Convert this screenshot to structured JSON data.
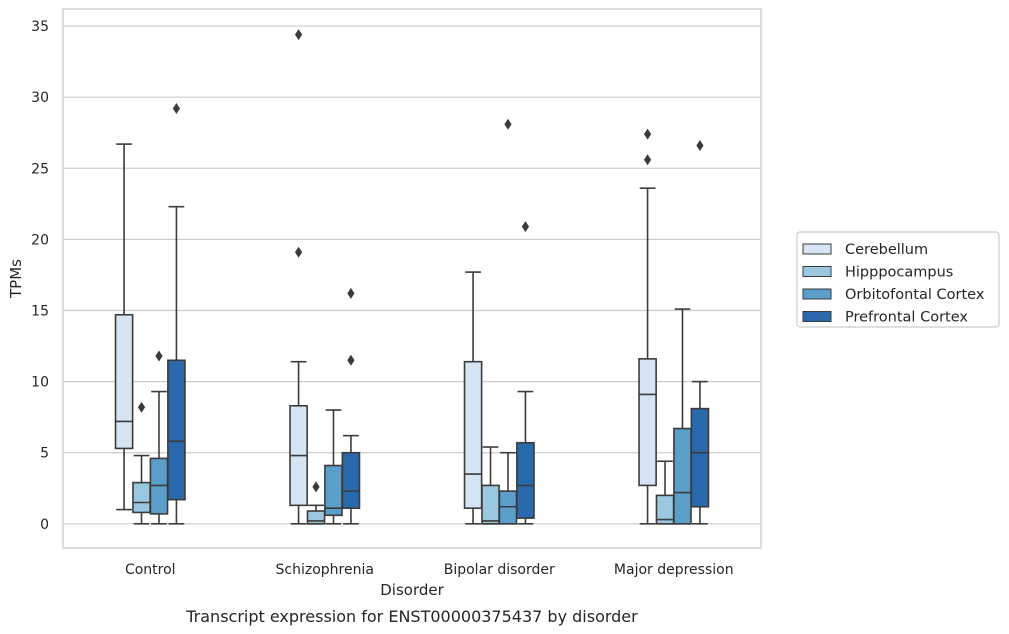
{
  "chart_data": {
    "type": "box",
    "title": "",
    "xlabel": "Disorder",
    "ylabel": "TPMs",
    "caption": "Transcript expression for ENST00000375437 by disorder",
    "ylim": [
      -1.7,
      36.2
    ],
    "yticks": [
      0,
      5,
      10,
      15,
      20,
      25,
      30,
      35
    ],
    "grid": true,
    "legend_position": "right",
    "categories": [
      "Control",
      "Schizophrenia",
      "Bipolar disorder",
      "Major depression"
    ],
    "series": [
      {
        "name": "Cerebellum",
        "color": "#d6e5f4",
        "boxes": [
          {
            "whisker_low": 1.0,
            "q1": 5.3,
            "median": 7.2,
            "q3": 14.7,
            "whisker_high": 26.7,
            "outliers": []
          },
          {
            "whisker_low": 0.0,
            "q1": 1.3,
            "median": 4.8,
            "q3": 8.3,
            "whisker_high": 11.4,
            "outliers": [
              19.1,
              34.4
            ]
          },
          {
            "whisker_low": 0.0,
            "q1": 1.1,
            "median": 3.5,
            "q3": 11.4,
            "whisker_high": 17.7,
            "outliers": []
          },
          {
            "whisker_low": 0.0,
            "q1": 2.7,
            "median": 9.1,
            "q3": 11.6,
            "whisker_high": 23.6,
            "outliers": [
              25.6,
              27.4
            ]
          }
        ]
      },
      {
        "name": "Hipppocampus",
        "color": "#9ac8e0",
        "boxes": [
          {
            "whisker_low": 0.0,
            "q1": 0.8,
            "median": 1.5,
            "q3": 2.9,
            "whisker_high": 4.8,
            "outliers": [
              8.2
            ]
          },
          {
            "whisker_low": 0.0,
            "q1": 0.0,
            "median": 0.2,
            "q3": 0.9,
            "whisker_high": 1.3,
            "outliers": [
              2.6
            ]
          },
          {
            "whisker_low": 0.0,
            "q1": 0.0,
            "median": 0.2,
            "q3": 2.7,
            "whisker_high": 5.4,
            "outliers": []
          },
          {
            "whisker_low": 0.0,
            "q1": 0.0,
            "median": 0.3,
            "q3": 2.0,
            "whisker_high": 4.4,
            "outliers": []
          }
        ]
      },
      {
        "name": "Orbitofontal Cortex",
        "color": "#5a9ec9",
        "boxes": [
          {
            "whisker_low": 0.0,
            "q1": 0.7,
            "median": 2.7,
            "q3": 4.6,
            "whisker_high": 9.3,
            "outliers": [
              11.8
            ]
          },
          {
            "whisker_low": 0.0,
            "q1": 0.6,
            "median": 1.1,
            "q3": 4.1,
            "whisker_high": 8.0,
            "outliers": []
          },
          {
            "whisker_low": 0.0,
            "q1": 0.0,
            "median": 1.2,
            "q3": 2.3,
            "whisker_high": 5.0,
            "outliers": [
              28.1
            ]
          },
          {
            "whisker_low": 0.0,
            "q1": 0.0,
            "median": 2.2,
            "q3": 6.7,
            "whisker_high": 15.1,
            "outliers": []
          }
        ]
      },
      {
        "name": "Prefrontal Cortex",
        "color": "#2a69ac",
        "boxes": [
          {
            "whisker_low": 0.0,
            "q1": 1.7,
            "median": 5.8,
            "q3": 11.5,
            "whisker_high": 22.3,
            "outliers": [
              29.2
            ]
          },
          {
            "whisker_low": 0.0,
            "q1": 1.1,
            "median": 2.3,
            "q3": 5.0,
            "whisker_high": 6.2,
            "outliers": [
              11.5,
              16.2
            ]
          },
          {
            "whisker_low": 0.0,
            "q1": 0.4,
            "median": 2.7,
            "q3": 5.7,
            "whisker_high": 9.3,
            "outliers": [
              20.9
            ]
          },
          {
            "whisker_low": 0.0,
            "q1": 1.2,
            "median": 5.0,
            "q3": 8.1,
            "whisker_high": 10.0,
            "outliers": [
              26.6
            ]
          }
        ]
      }
    ]
  }
}
